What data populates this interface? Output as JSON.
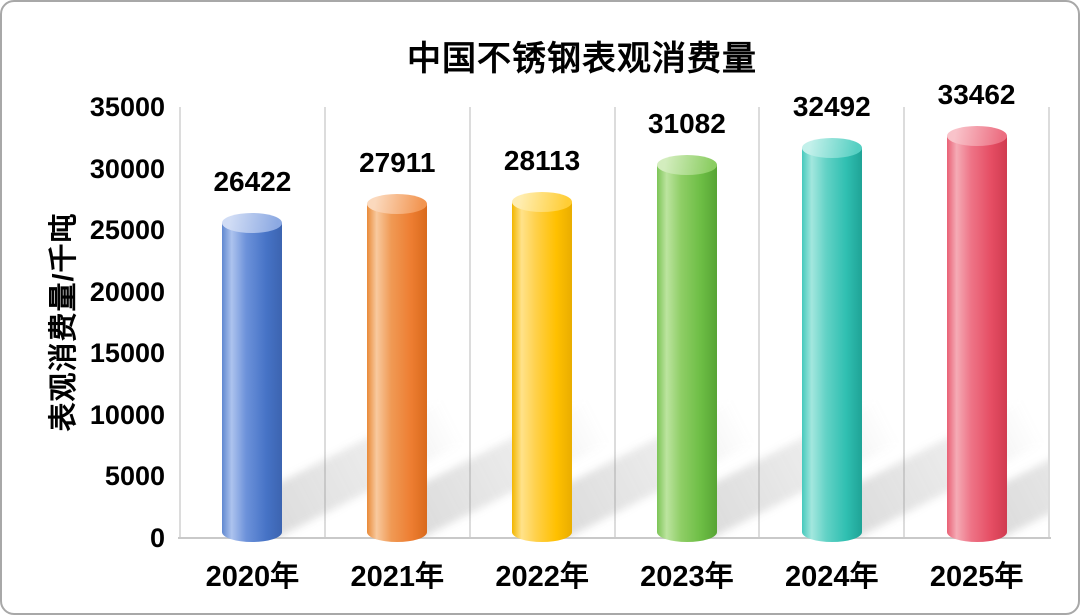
{
  "window": {
    "background_color": "#ffffff",
    "border_color": "#a8a8a8"
  },
  "chart_data": {
    "type": "bar",
    "subtype": "3d-cylinder",
    "title": "中国不锈钢表观消费量",
    "xlabel": "",
    "ylabel": "表观消费量/千吨",
    "categories": [
      "2020年",
      "2021年",
      "2022年",
      "2023年",
      "2024年",
      "2025年"
    ],
    "values": [
      26422,
      27911,
      28113,
      31082,
      32492,
      33462
    ],
    "data_labels": [
      "26422",
      "27911",
      "28113",
      "31082",
      "32492",
      "33462"
    ],
    "ylim": [
      0,
      35000
    ],
    "yticks": [
      0,
      5000,
      10000,
      15000,
      20000,
      25000,
      30000,
      35000
    ],
    "legend": "none",
    "grid": "vertical category separators only",
    "effects": "soft diagonal floor shadows rising to the right of each cylinder",
    "text_color": "#000000",
    "gridline_color": "#dcdcdc",
    "baseline_color": "#c9c9c9",
    "series_colors": [
      {
        "name": "blue",
        "edge": "#6088d0",
        "highlight": "#adc3ee",
        "mid": "#6d92da",
        "base": "#4673c6",
        "dark": "#3c64b0",
        "top_light": "#d0dcf5",
        "top_dark": "#8ca9e2"
      },
      {
        "name": "orange",
        "edge": "#e98a38",
        "highlight": "#f8c99e",
        "mid": "#f09a55",
        "base": "#ed7d31",
        "dark": "#d96a1c",
        "top_light": "#fbd9bd",
        "top_dark": "#f29551"
      },
      {
        "name": "yellow",
        "edge": "#f2b600",
        "highlight": "#ffe28a",
        "mid": "#ffd04a",
        "base": "#ffc000",
        "dark": "#e9ad00",
        "top_light": "#ffedb0",
        "top_dark": "#ffcd35"
      },
      {
        "name": "green",
        "edge": "#7cc456",
        "highlight": "#bce49f",
        "mid": "#8fce66",
        "base": "#6cbd44",
        "dark": "#57a434",
        "top_light": "#d3edbe",
        "top_dark": "#8bcd62"
      },
      {
        "name": "teal",
        "edge": "#45c9bc",
        "highlight": "#a3e7de",
        "mid": "#63d2c6",
        "base": "#2fbfb1",
        "dark": "#1fa396",
        "top_light": "#c2f0ea",
        "top_dark": "#55cfc2"
      },
      {
        "name": "red",
        "edge": "#e96075",
        "highlight": "#f5abb5",
        "mid": "#ee7487",
        "base": "#e54d63",
        "dark": "#d03b50",
        "top_light": "#f9c3ca",
        "top_dark": "#ec6e81"
      }
    ]
  }
}
